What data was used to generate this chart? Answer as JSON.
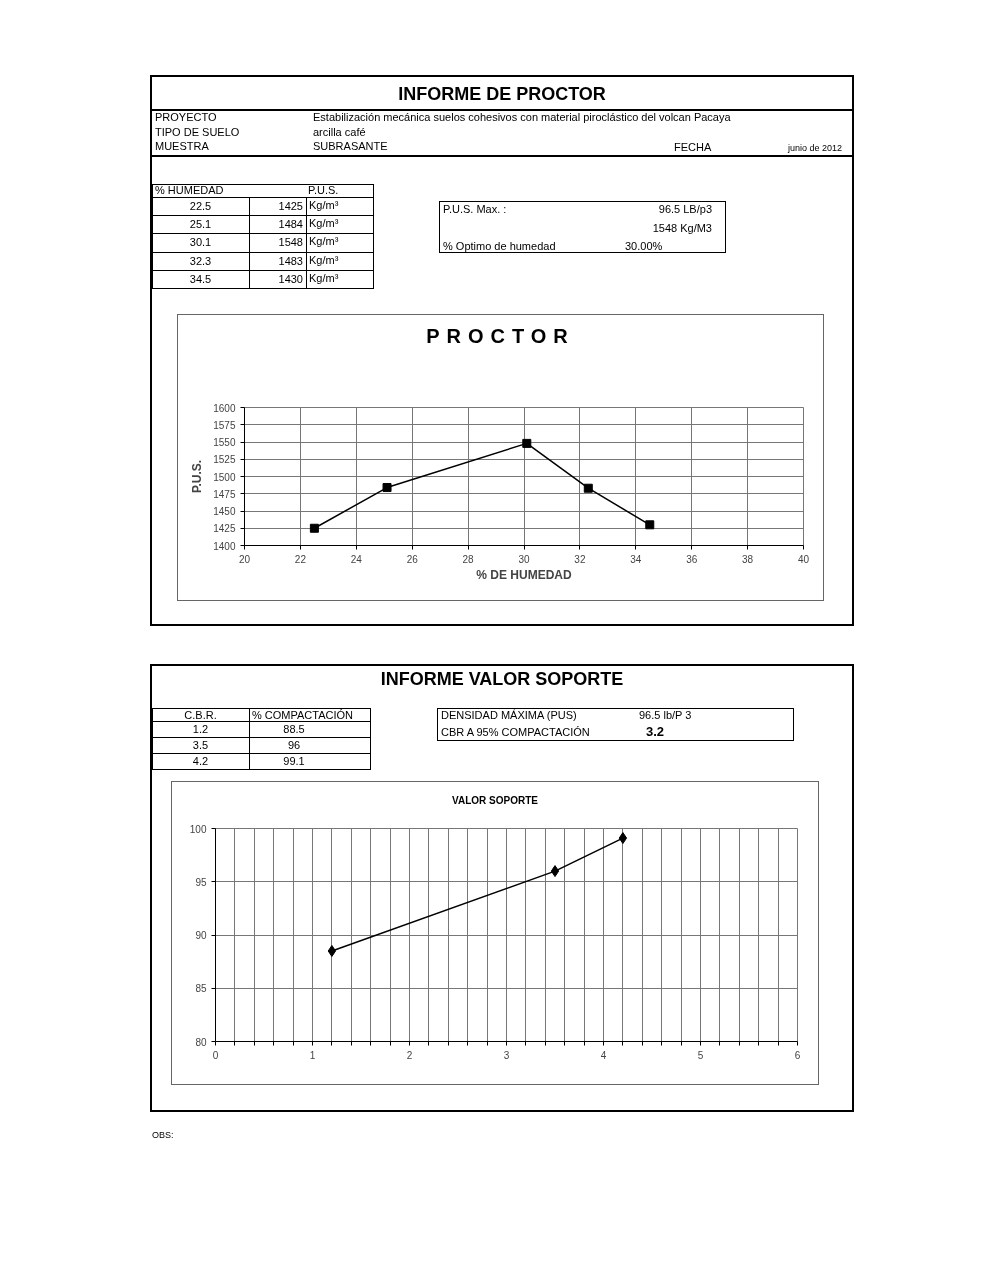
{
  "chart_data": [
    {
      "type": "line",
      "title": "INFORME DE PROCTOR",
      "subtitle": "PROCTOR",
      "xlabel": "% DE HUMEDAD",
      "ylabel": "P.U.S.",
      "x": [
        22.5,
        25.1,
        30.1,
        32.3,
        34.5
      ],
      "values": [
        1425,
        1484,
        1548,
        1483,
        1430
      ],
      "color": "#000000",
      "marker": "square",
      "xlim": [
        20,
        40
      ],
      "xticks": [
        20,
        22,
        24,
        26,
        28,
        30,
        32,
        34,
        36,
        38,
        40
      ],
      "ylim": [
        1400,
        1600
      ],
      "yticks": [
        1400,
        1425,
        1450,
        1475,
        1500,
        1525,
        1550,
        1575,
        1600
      ],
      "grid": true,
      "annotations": [
        "PROYECTO",
        "Estabilización mecánica suelos cohesivos con material piroclástico del volcan Pacaya",
        "TIPO DE SUELO",
        "arcilla café",
        "MUESTRA",
        "SUBRASANTE",
        "FECHA",
        "junio de 2012",
        "% HUMEDAD",
        "P.U.S.",
        "22.5",
        "1425",
        "Kg/m³",
        "25.1",
        "1484",
        "Kg/m³",
        "30.1",
        "1548",
        "Kg/m³",
        "32.3",
        "1483",
        "Kg/m³",
        "34.5",
        "1430",
        "Kg/m³",
        "P.U.S. Max. :",
        "96.5 LB/p3",
        "1548 Kg/M3",
        "% Optimo de humedad",
        "30.00%"
      ]
    },
    {
      "type": "line",
      "title": "INFORME VALOR SOPORTE",
      "subtitle": "VALOR SOPORTE",
      "x": [
        1.2,
        3.5,
        4.2
      ],
      "values": [
        88.5,
        96,
        99.1
      ],
      "color": "#000000",
      "marker": "diamond",
      "xlim": [
        0,
        6
      ],
      "xticks": [
        0,
        {
          "value": 0.2,
          "label": null
        },
        {
          "value": 0.4,
          "label": null
        },
        {
          "value": 0.6,
          "label": null
        },
        {
          "value": 0.8,
          "label": null
        },
        1,
        {
          "value": 1.2,
          "label": null
        },
        {
          "value": 1.4,
          "label": null
        },
        {
          "value": 1.6,
          "label": null
        },
        {
          "value": 1.8,
          "label": null
        },
        2,
        {
          "value": 2.2,
          "label": null
        },
        {
          "value": 2.4,
          "label": null
        },
        {
          "value": 2.6,
          "label": null
        },
        {
          "value": 2.8,
          "label": null
        },
        3,
        {
          "value": 3.2,
          "label": null
        },
        {
          "value": 3.4,
          "label": null
        },
        {
          "value": 3.6,
          "label": null
        },
        {
          "value": 3.8,
          "label": null
        },
        4,
        {
          "value": 4.2,
          "label": null
        },
        {
          "value": 4.4,
          "label": null
        },
        {
          "value": 4.6,
          "label": null
        },
        {
          "value": 4.8,
          "label": null
        },
        5,
        {
          "value": 5.2,
          "label": null
        },
        {
          "value": 5.4,
          "label": null
        },
        {
          "value": 5.6,
          "label": null
        },
        {
          "value": 5.8,
          "label": null
        },
        6
      ],
      "ylim": [
        80,
        100
      ],
      "yticks": [
        80,
        85,
        90,
        95,
        100
      ],
      "grid": true,
      "annotations": [
        "C.B.R.",
        "% COMPACTACIÓN",
        "1.2",
        "88.5",
        "3.5",
        "96",
        "4.2",
        "99.1",
        "DENSIDAD MÁXIMA (PUS)",
        "96.5 lb/P 3",
        "CBR A 95% COMPACTACIÓN",
        "3.2",
        "OBS:"
      ]
    }
  ]
}
